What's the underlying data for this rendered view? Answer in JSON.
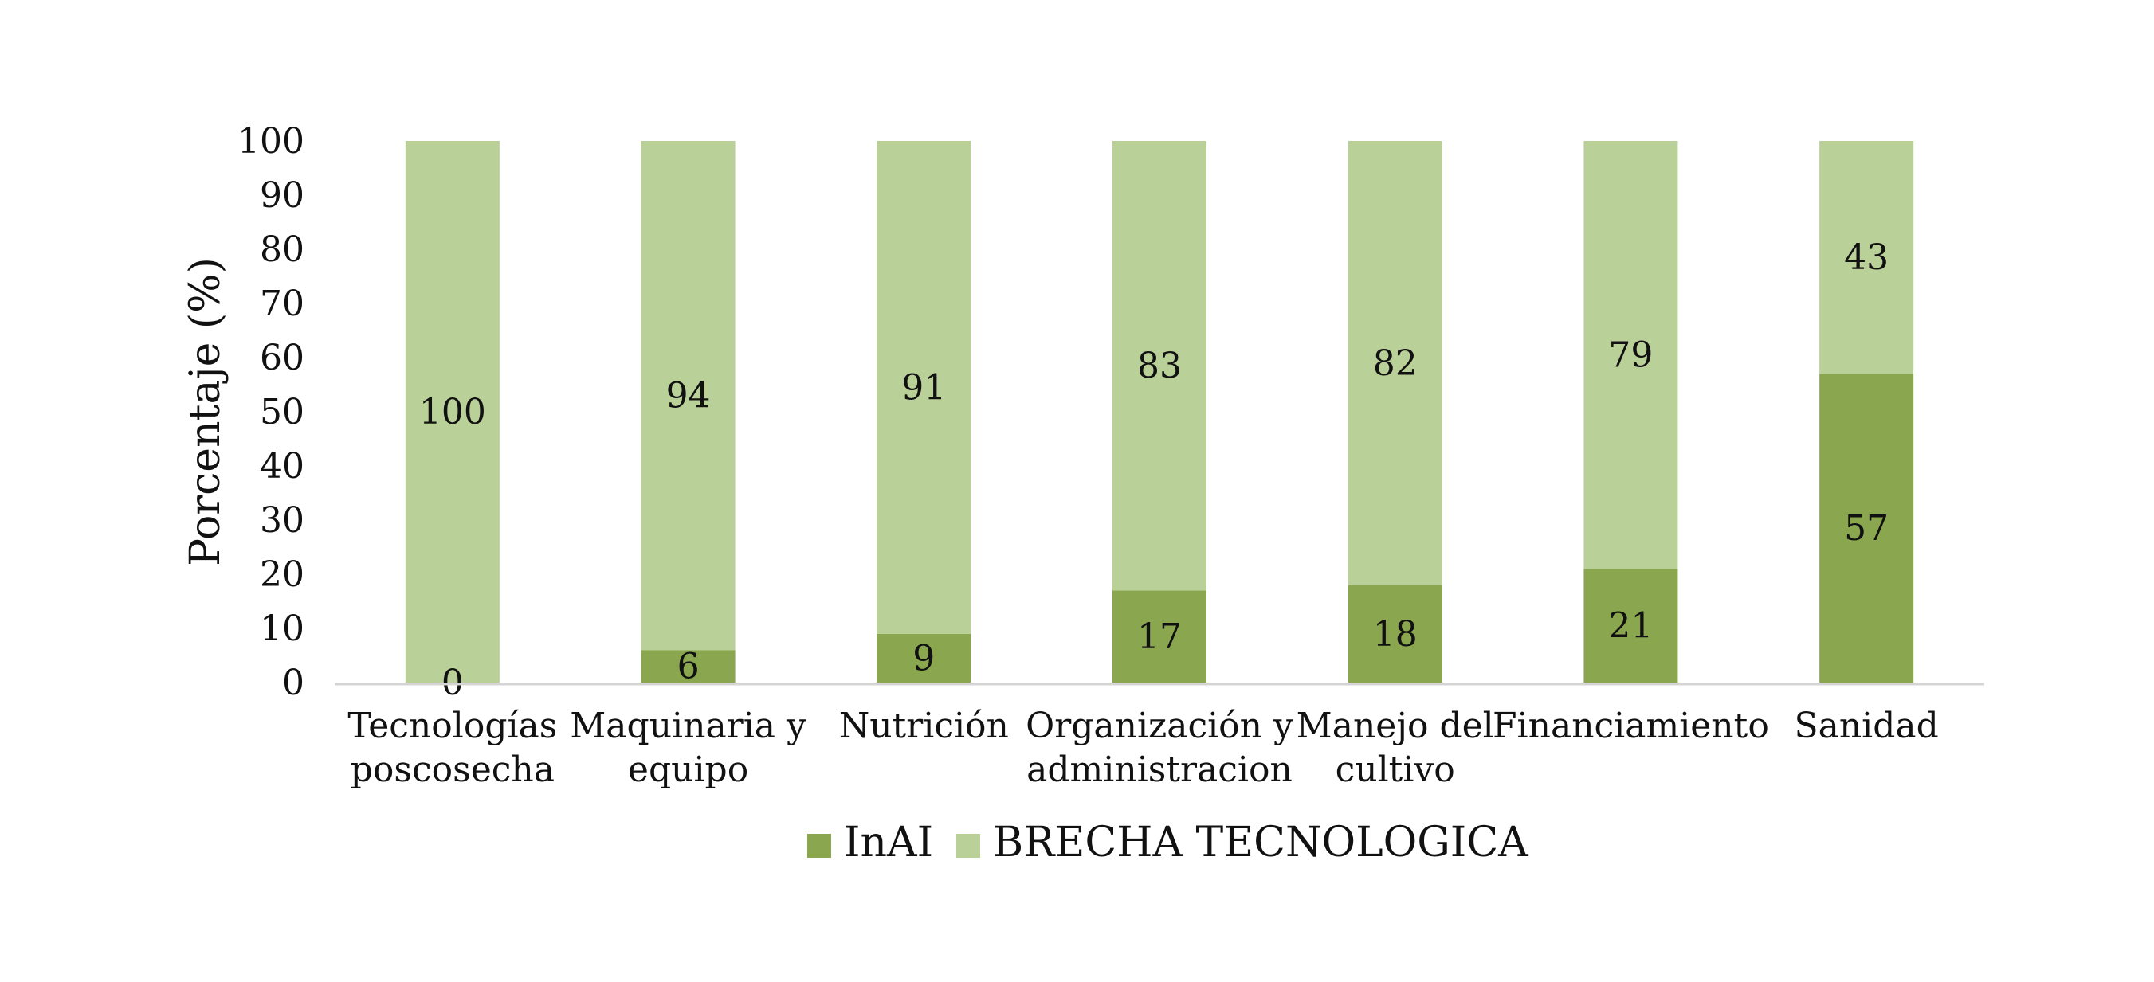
{
  "chart_data": {
    "type": "bar",
    "stacked": true,
    "categories": [
      [
        "Tecnologías",
        "poscosecha"
      ],
      [
        "Maquinaria y",
        "equipo"
      ],
      [
        "Nutrición"
      ],
      [
        "Organización y",
        "administracion"
      ],
      [
        "Manejo del",
        "cultivo"
      ],
      [
        "Financiamiento"
      ],
      [
        "Sanidad"
      ]
    ],
    "series": [
      {
        "name": "InAI",
        "values": [
          0,
          6,
          9,
          17,
          18,
          21,
          57
        ],
        "color": "#8aa74f"
      },
      {
        "name": "BRECHA TECNOLOGICA",
        "values": [
          100,
          94,
          91,
          83,
          82,
          79,
          43
        ],
        "color": "#bad099"
      }
    ],
    "title": "",
    "xlabel": "",
    "ylabel": "Porcentaje (%)",
    "ylim": [
      0,
      100
    ],
    "yticks": [
      0,
      10,
      20,
      30,
      40,
      50,
      60,
      70,
      80,
      90,
      100
    ],
    "grid": false,
    "legend": "bottom",
    "data_labels": true
  }
}
